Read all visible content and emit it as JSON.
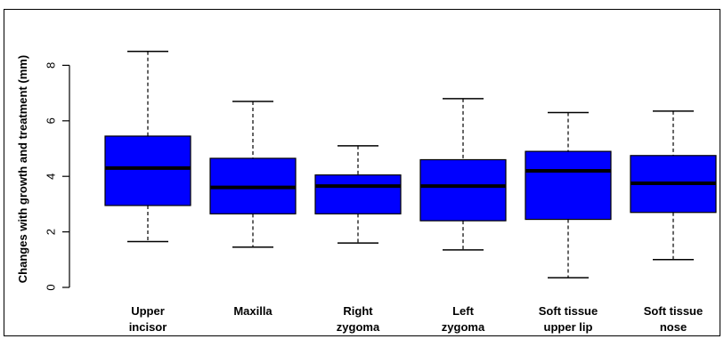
{
  "chart_data": {
    "type": "boxplot",
    "ylabel": "Changes with growth and treatment (mm)",
    "ylim": [
      0,
      9
    ],
    "yticks": [
      0,
      2,
      4,
      6,
      8
    ],
    "grid": false,
    "box_color": "#0000FF",
    "categories": [
      [
        "Upper",
        "incisor"
      ],
      [
        "Maxilla"
      ],
      [
        "Right",
        "zygoma"
      ],
      [
        "Left",
        "zygoma"
      ],
      [
        "Soft tissue",
        "upper lip"
      ],
      [
        "Soft tissue",
        "nose"
      ]
    ],
    "boxes": [
      {
        "min": 1.65,
        "q1": 2.95,
        "median": 4.3,
        "q3": 5.45,
        "max": 8.5
      },
      {
        "min": 1.45,
        "q1": 2.65,
        "median": 3.6,
        "q3": 4.65,
        "max": 6.7
      },
      {
        "min": 1.6,
        "q1": 2.65,
        "median": 3.65,
        "q3": 4.05,
        "max": 5.1
      },
      {
        "min": 1.35,
        "q1": 2.4,
        "median": 3.65,
        "q3": 4.6,
        "max": 6.8
      },
      {
        "min": 0.35,
        "q1": 2.45,
        "median": 4.2,
        "q3": 4.9,
        "max": 6.3
      },
      {
        "min": 1.0,
        "q1": 2.7,
        "median": 3.75,
        "q3": 4.75,
        "max": 6.35
      }
    ]
  }
}
